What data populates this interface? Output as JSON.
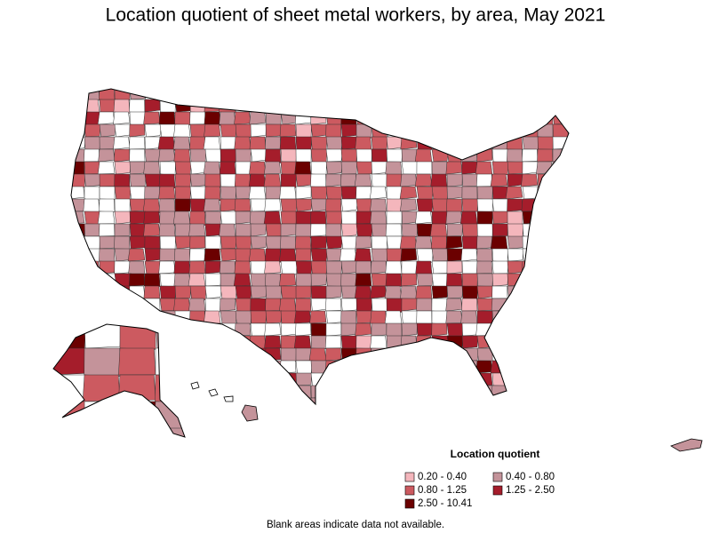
{
  "title": "Location quotient of sheet metal workers, by area, May 2021",
  "legend": {
    "title": "Location quotient",
    "items": [
      {
        "label": "0.20 - 0.40",
        "color": "#f4b6bc"
      },
      {
        "label": "0.40 - 0.80",
        "color": "#c4939a"
      },
      {
        "label": "0.80 - 1.25",
        "color": "#cc5a60"
      },
      {
        "label": "1.25 - 2.50",
        "color": "#a51d2b"
      },
      {
        "label": "2.50 - 10.41",
        "color": "#6b0000"
      }
    ]
  },
  "footnote": "Blank areas indicate data not available."
}
